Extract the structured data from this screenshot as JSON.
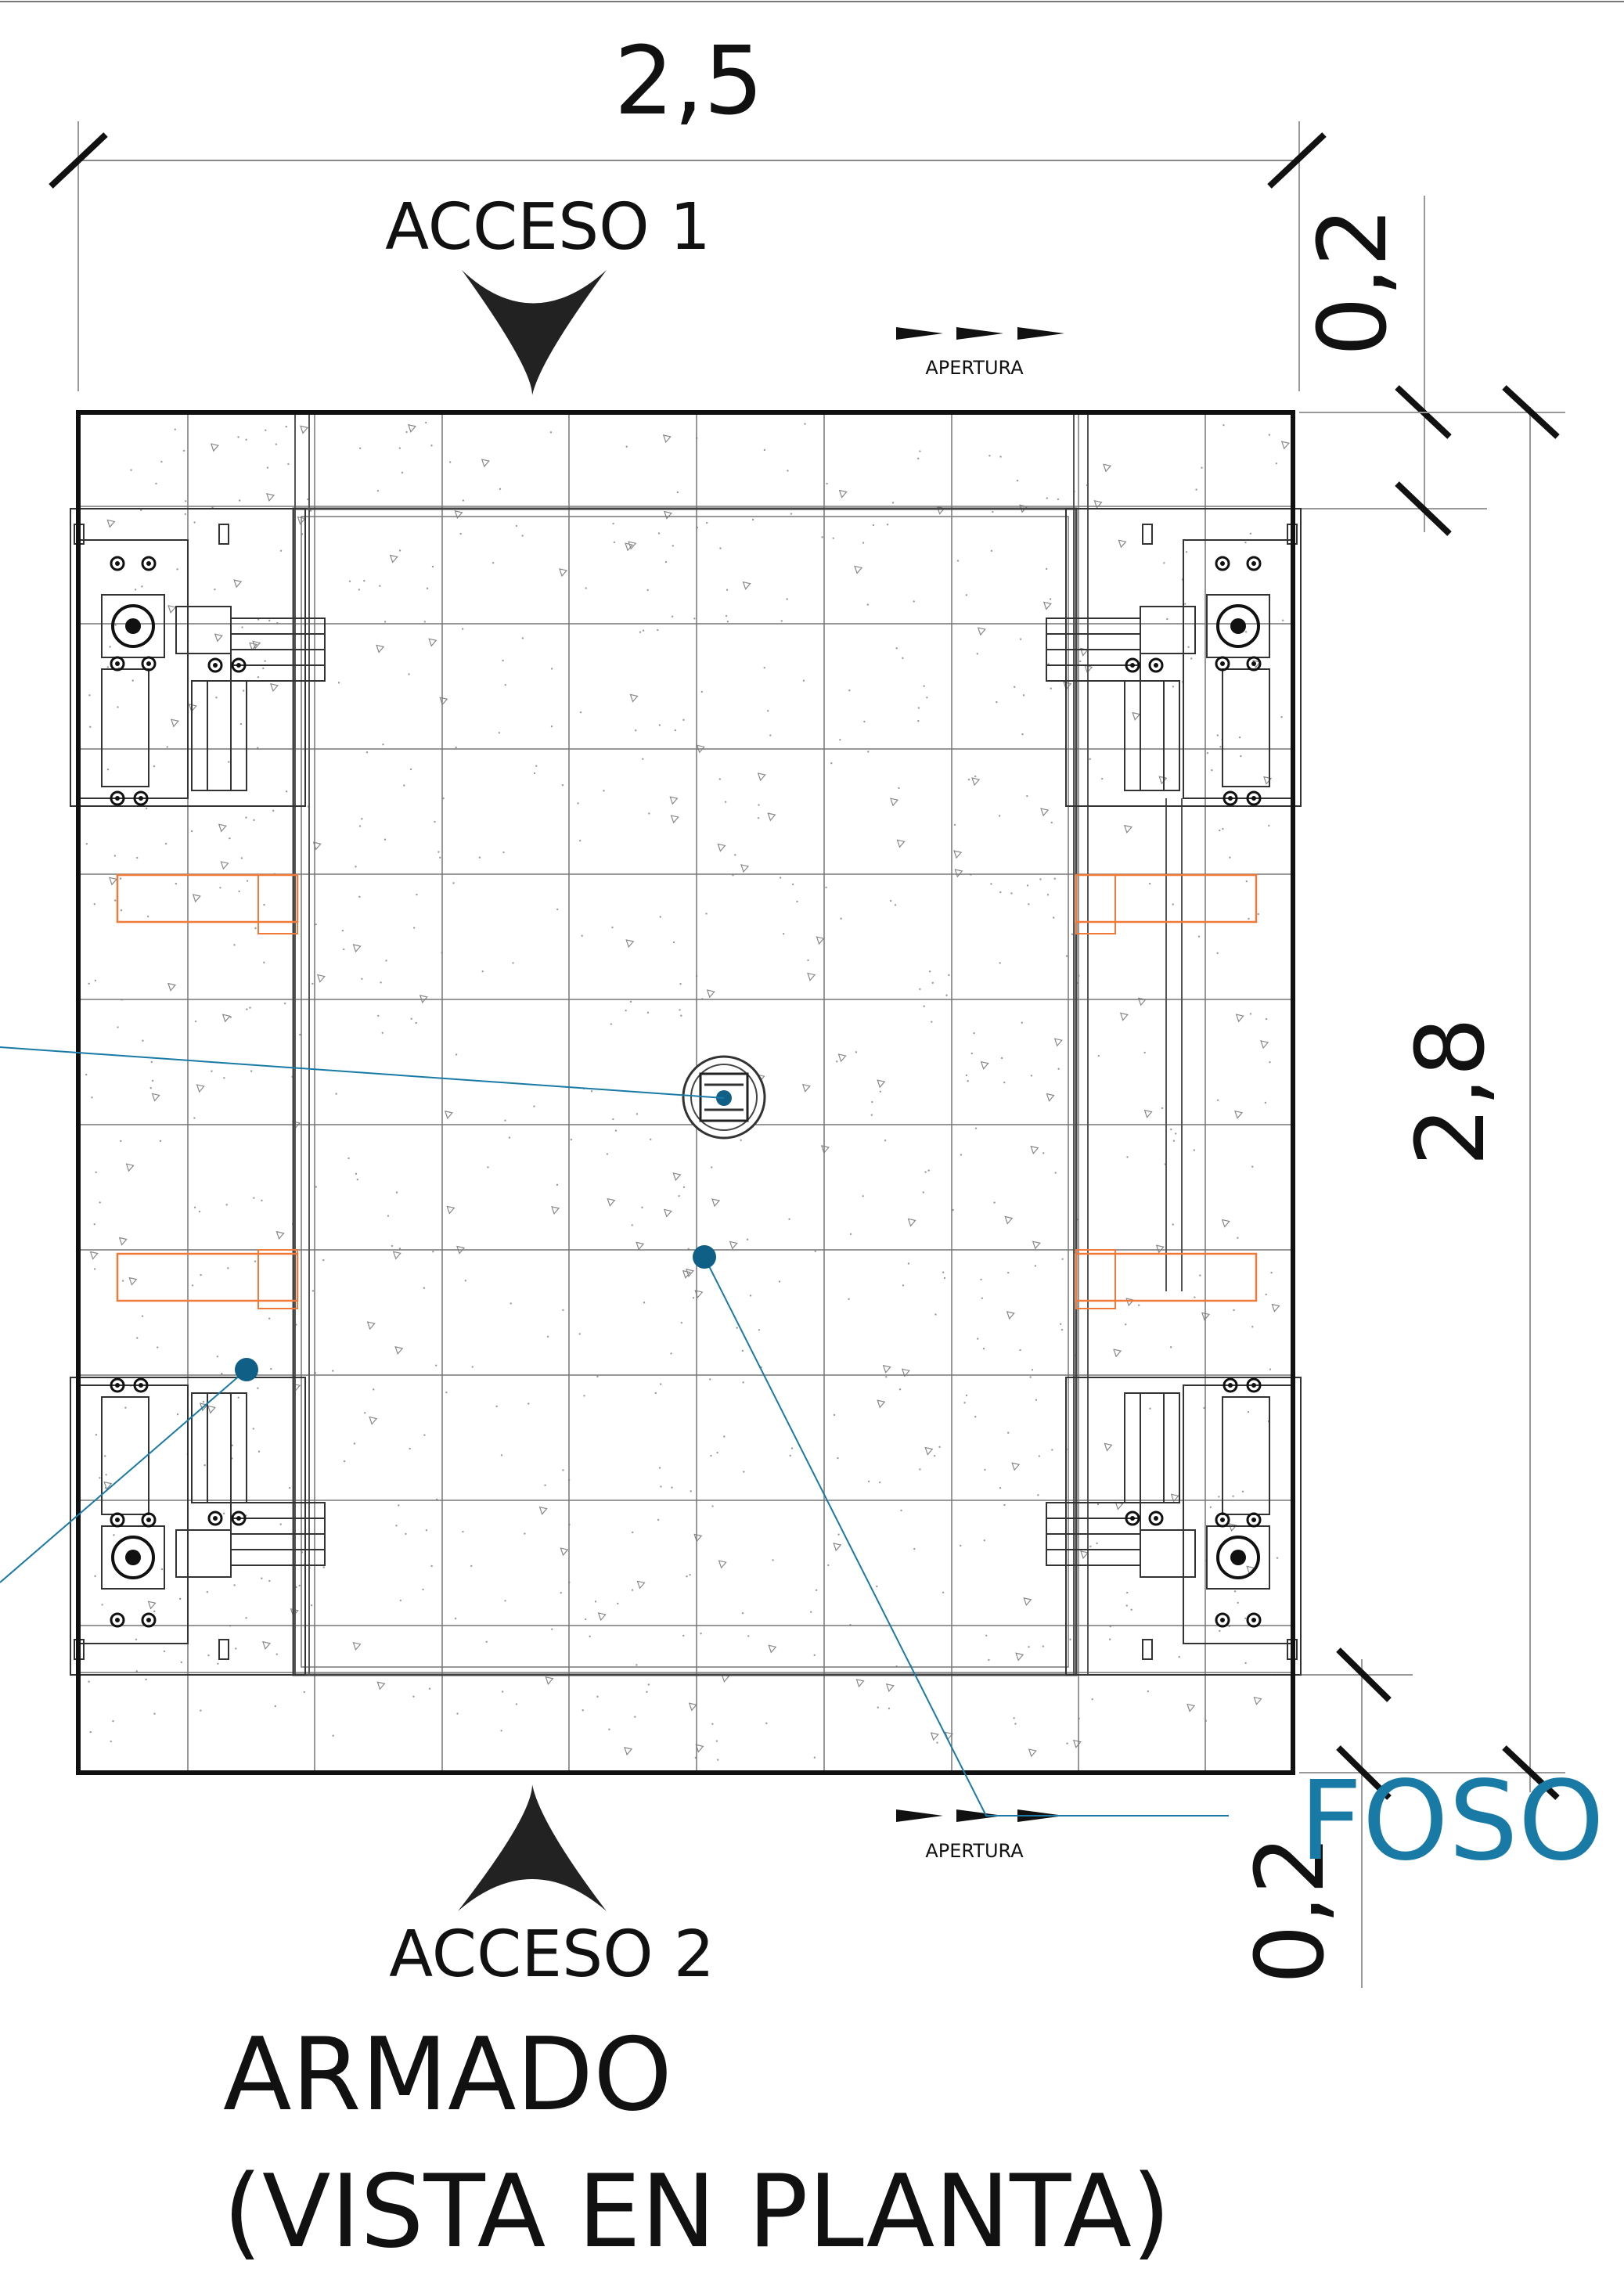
{
  "dimensions": {
    "width": "2,5",
    "height": "2,8",
    "top_offset": "0,2",
    "bottom_offset": "0,2"
  },
  "access": {
    "top": "ACCESO 1",
    "bottom": "ACCESO 2"
  },
  "opening": {
    "top": "APERTURA",
    "bottom": "APERTURA"
  },
  "pit_label": "FOSO",
  "title": {
    "line1": "ARMADO",
    "line2": "(VISTA EN PLANTA)"
  },
  "colors": {
    "line": "#111111",
    "callout": "#1a7aa6",
    "callout_dot": "#0f5f86",
    "orange_box": "#f07a3a",
    "grid": "#666666",
    "speckle": "#9a9a9a"
  }
}
